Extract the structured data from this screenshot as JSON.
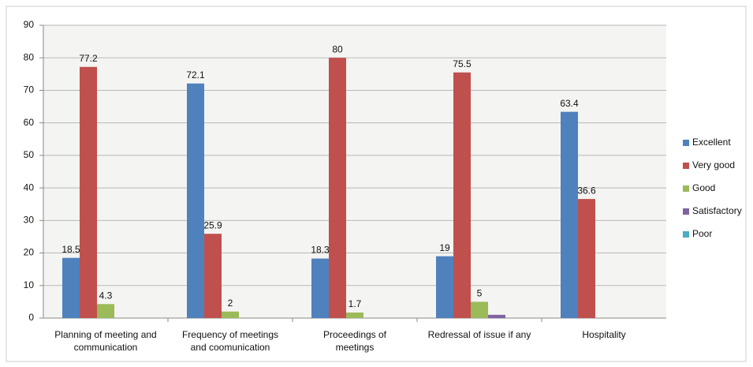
{
  "chart_data": {
    "type": "bar",
    "categories": [
      [
        "Planning of meeting and",
        "communication"
      ],
      [
        "Frequency of meetings",
        "and coomunication"
      ],
      [
        "Proceedings of",
        "meetings"
      ],
      [
        "Redressal of issue if any"
      ],
      [
        "Hospitality"
      ]
    ],
    "series": [
      {
        "name": "Excellent",
        "color": "#4f81bd",
        "data_labels": true,
        "values": [
          18.5,
          72.1,
          18.3,
          19,
          63.4
        ]
      },
      {
        "name": "Very good",
        "color": "#c0504d",
        "data_labels": true,
        "values": [
          77.2,
          25.9,
          80,
          75.5,
          36.6
        ]
      },
      {
        "name": "Good",
        "color": "#9bbb59",
        "data_labels": true,
        "values": [
          4.3,
          2,
          1.7,
          5,
          null
        ]
      },
      {
        "name": "Satisfactory",
        "color": "#8064a2",
        "values": [
          null,
          null,
          null,
          1,
          null
        ]
      },
      {
        "name": "Poor",
        "color": "#4bacc6",
        "values": [
          null,
          null,
          null,
          null,
          null
        ]
      }
    ],
    "ylim": [
      0,
      90
    ],
    "yticks": [
      0,
      10,
      20,
      30,
      40,
      50,
      60,
      70,
      80,
      90
    ],
    "grid": true,
    "legend": "right"
  }
}
